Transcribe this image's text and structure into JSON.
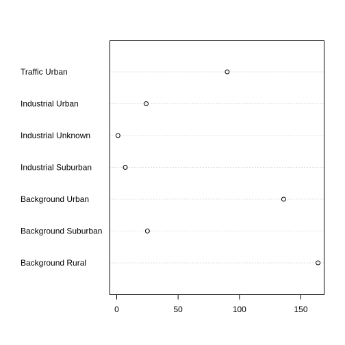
{
  "chart_data": {
    "type": "scatter",
    "subtype": "dotchart",
    "title": "",
    "xlabel": "",
    "ylabel": "",
    "categories": [
      "Traffic Urban",
      "Industrial Urban",
      "Industrial Unknown",
      "Industrial Suburban",
      "Background Urban",
      "Background Suburban",
      "Background Rural"
    ],
    "values": [
      90,
      24,
      1,
      7,
      136,
      25,
      164
    ],
    "xlim": [
      -6,
      170
    ],
    "xticks": [
      0,
      50,
      100,
      150
    ],
    "xtick_labels": [
      "0",
      "50",
      "100",
      "150"
    ],
    "grid": "horizontal dotted guide lines",
    "colors": {
      "point": "#000000",
      "guide": "#bebebe",
      "box": "#000000"
    }
  }
}
